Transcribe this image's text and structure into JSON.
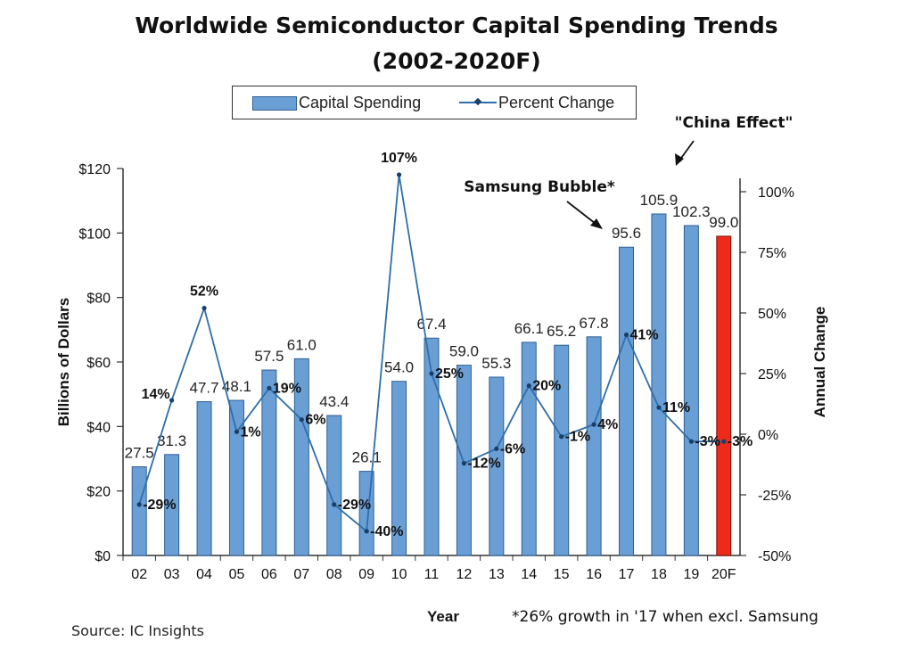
{
  "title_line1": "Worldwide Semiconductor Capital Spending Trends",
  "title_line2": "(2002-2020F)",
  "source": "Source: IC Insights",
  "colors": {
    "bar": "#6a9fd6",
    "bar_forecast": "#ee2a1b",
    "line": "#2f6ea8"
  },
  "chart_data": {
    "type": "bar",
    "categories": [
      "02",
      "03",
      "04",
      "05",
      "06",
      "07",
      "08",
      "09",
      "10",
      "11",
      "12",
      "13",
      "14",
      "15",
      "16",
      "17",
      "18",
      "19",
      "20F"
    ],
    "series": [
      {
        "name": "Capital Spending",
        "type": "bar",
        "axis": "left",
        "values": [
          27.5,
          31.3,
          47.7,
          48.1,
          57.5,
          61.0,
          43.4,
          26.1,
          54.0,
          67.4,
          59.0,
          55.3,
          66.1,
          65.2,
          67.8,
          95.6,
          105.9,
          102.3,
          99.0
        ],
        "labels": [
          "27.5",
          "31.3",
          "47.7",
          "48.1",
          "57.5",
          "61.0",
          "43.4",
          "26.1",
          "54.0",
          "67.4",
          "59.0",
          "55.3",
          "66.1",
          "65.2",
          "67.8",
          "95.6",
          "105.9",
          "102.3",
          "99.0"
        ]
      },
      {
        "name": "Percent Change",
        "type": "line",
        "axis": "right",
        "values": [
          -29,
          14,
          52,
          1,
          19,
          6,
          -29,
          -40,
          107,
          25,
          -12,
          -6,
          20,
          -1,
          4,
          41,
          11,
          -3,
          -3
        ],
        "labels": [
          "-29%",
          "14%",
          "52%",
          "1%",
          "19%",
          "6%",
          "-29%",
          "-40%",
          "107%",
          "25%",
          "-12%",
          "-6%",
          "20%",
          "-1%",
          "4%",
          "41%",
          "11%",
          "-3%",
          "-3%"
        ]
      }
    ],
    "xlabel": "Year",
    "ylabel": "Billions of Dollars",
    "y2label": "Annual Change",
    "ylim": [
      0,
      120
    ],
    "y2lim": [
      -50,
      110
    ],
    "yticks": [
      "$0",
      "$20",
      "$40",
      "$60",
      "$80",
      "$100",
      "$120"
    ],
    "y2ticks": [
      "-50%",
      "-25%",
      "0%",
      "25%",
      "50%",
      "75%",
      "100%"
    ],
    "annotations": {
      "samsung": "Samsung Bubble*",
      "china": "\"China Effect\"",
      "footnote": "*26% growth in '17 when excl. Samsung"
    },
    "legend": "top-center",
    "grid": false
  }
}
